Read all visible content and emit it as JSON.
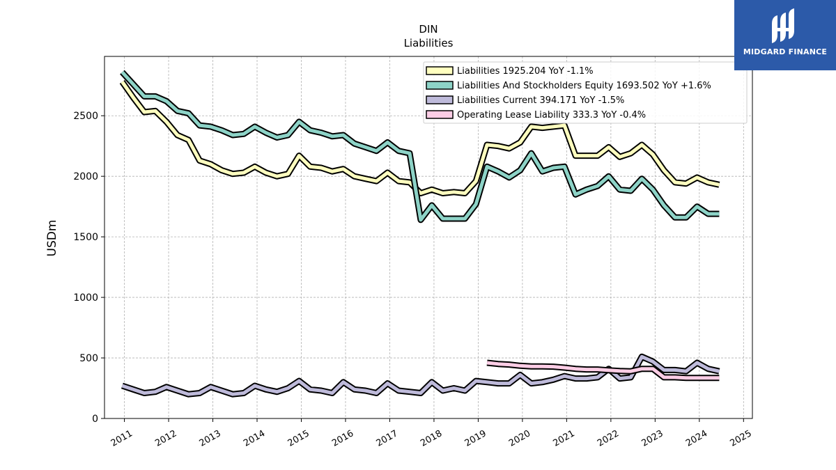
{
  "logo": {
    "text": "MIDGARD FINANCE"
  },
  "chart_data": {
    "type": "line",
    "title": "DIN",
    "subtitle": "Liabilities",
    "ylabel": "USDm",
    "xlabel": "",
    "xlim": [
      2010.55,
      2025.2
    ],
    "ylim": [
      0,
      2990
    ],
    "xticks": [
      "2011",
      "2012",
      "2013",
      "2014",
      "2015",
      "2016",
      "2017",
      "2018",
      "2019",
      "2020",
      "2021",
      "2022",
      "2023",
      "2024",
      "2025"
    ],
    "yticks": [
      0,
      500,
      1000,
      1500,
      2000,
      2500
    ],
    "grid": true,
    "legend_position": "top-right",
    "series": [
      {
        "name": "Liabilities",
        "legend": "Liabilities  1925.204 YoY -1.1%",
        "color": "#ffffbf",
        "x": [
          2010.95,
          2011.2,
          2011.45,
          2011.7,
          2011.95,
          2012.2,
          2012.45,
          2012.7,
          2012.95,
          2013.2,
          2013.45,
          2013.7,
          2013.95,
          2014.2,
          2014.45,
          2014.7,
          2014.95,
          2015.2,
          2015.45,
          2015.7,
          2015.95,
          2016.2,
          2016.45,
          2016.7,
          2016.95,
          2017.2,
          2017.45,
          2017.7,
          2017.95,
          2018.2,
          2018.45,
          2018.7,
          2018.95,
          2019.2,
          2019.45,
          2019.7,
          2019.95,
          2020.2,
          2020.45,
          2020.7,
          2020.95,
          2021.2,
          2021.45,
          2021.7,
          2021.95,
          2022.2,
          2022.45,
          2022.7,
          2022.95,
          2023.2,
          2023.45,
          2023.7,
          2023.95,
          2024.2,
          2024.45
        ],
        "y": [
          2780,
          2650,
          2530,
          2540,
          2450,
          2340,
          2300,
          2130,
          2100,
          2050,
          2020,
          2030,
          2080,
          2030,
          2000,
          2020,
          2170,
          2080,
          2070,
          2040,
          2060,
          2000,
          1980,
          1960,
          2030,
          1960,
          1950,
          1860,
          1890,
          1860,
          1870,
          1860,
          1960,
          2260,
          2250,
          2230,
          2280,
          2410,
          2400,
          2410,
          2420,
          2170,
          2170,
          2170,
          2240,
          2160,
          2190,
          2260,
          2180,
          2050,
          1950,
          1940,
          1990,
          1950,
          1930
        ]
      },
      {
        "name": "Liabilities And Stockholders Equity",
        "legend": "Liabilities And Stockholders Equity  1693.502 YoY +1.6%",
        "color": "#8dd3c7",
        "x": [
          2010.95,
          2011.2,
          2011.45,
          2011.7,
          2011.95,
          2012.2,
          2012.45,
          2012.7,
          2012.95,
          2013.2,
          2013.45,
          2013.7,
          2013.95,
          2014.2,
          2014.45,
          2014.7,
          2014.95,
          2015.2,
          2015.45,
          2015.7,
          2015.95,
          2016.2,
          2016.45,
          2016.7,
          2016.95,
          2017.2,
          2017.45,
          2017.7,
          2017.95,
          2018.2,
          2018.45,
          2018.7,
          2018.95,
          2019.2,
          2019.45,
          2019.7,
          2019.95,
          2020.2,
          2020.45,
          2020.7,
          2020.95,
          2021.2,
          2021.45,
          2021.7,
          2021.95,
          2022.2,
          2022.45,
          2022.7,
          2022.95,
          2023.2,
          2023.45,
          2023.7,
          2023.95,
          2024.2,
          2024.45
        ],
        "y": [
          2860,
          2760,
          2660,
          2660,
          2620,
          2540,
          2520,
          2420,
          2410,
          2380,
          2340,
          2350,
          2410,
          2360,
          2320,
          2340,
          2450,
          2380,
          2360,
          2330,
          2340,
          2270,
          2240,
          2210,
          2280,
          2210,
          2190,
          1640,
          1760,
          1650,
          1650,
          1650,
          1770,
          2080,
          2040,
          1990,
          2050,
          2190,
          2040,
          2070,
          2080,
          1850,
          1890,
          1920,
          2000,
          1890,
          1880,
          1980,
          1890,
          1760,
          1660,
          1660,
          1750,
          1690,
          1690
        ]
      },
      {
        "name": "Liabilities Current",
        "legend": "Liabilities Current  394.171 YoY -1.5%",
        "color": "#bebada",
        "x": [
          2010.95,
          2011.2,
          2011.45,
          2011.7,
          2011.95,
          2012.2,
          2012.45,
          2012.7,
          2012.95,
          2013.2,
          2013.45,
          2013.7,
          2013.95,
          2014.2,
          2014.45,
          2014.7,
          2014.95,
          2015.2,
          2015.45,
          2015.7,
          2015.95,
          2016.2,
          2016.45,
          2016.7,
          2016.95,
          2017.2,
          2017.45,
          2017.7,
          2017.95,
          2018.2,
          2018.45,
          2018.7,
          2018.95,
          2019.2,
          2019.45,
          2019.7,
          2019.95,
          2020.2,
          2020.45,
          2020.7,
          2020.95,
          2021.2,
          2021.45,
          2021.7,
          2021.95,
          2022.2,
          2022.45,
          2022.7,
          2022.95,
          2023.2,
          2023.45,
          2023.7,
          2023.95,
          2024.2,
          2024.45
        ],
        "y": [
          270,
          240,
          210,
          220,
          260,
          230,
          200,
          210,
          260,
          230,
          200,
          210,
          270,
          240,
          220,
          250,
          310,
          240,
          230,
          210,
          300,
          240,
          230,
          210,
          290,
          230,
          220,
          210,
          300,
          230,
          250,
          230,
          310,
          300,
          290,
          290,
          360,
          290,
          300,
          320,
          350,
          330,
          330,
          340,
          410,
          330,
          340,
          510,
          470,
          400,
          400,
          390,
          460,
          410,
          390
        ]
      },
      {
        "name": "Operating Lease Liability",
        "legend": "Operating Lease Liability  333.3 YoY -0.4%",
        "color": "#fccde5",
        "x": [
          2019.2,
          2019.45,
          2019.7,
          2019.95,
          2020.2,
          2020.45,
          2020.7,
          2020.95,
          2021.2,
          2021.45,
          2021.7,
          2021.95,
          2022.2,
          2022.45,
          2022.7,
          2022.95,
          2023.2,
          2023.45,
          2023.7,
          2023.95,
          2024.2,
          2024.45
        ],
        "y": [
          460,
          450,
          445,
          435,
          430,
          430,
          428,
          420,
          410,
          405,
          405,
          398,
          393,
          390,
          410,
          410,
          340,
          340,
          335,
          335,
          335,
          335
        ]
      }
    ]
  }
}
